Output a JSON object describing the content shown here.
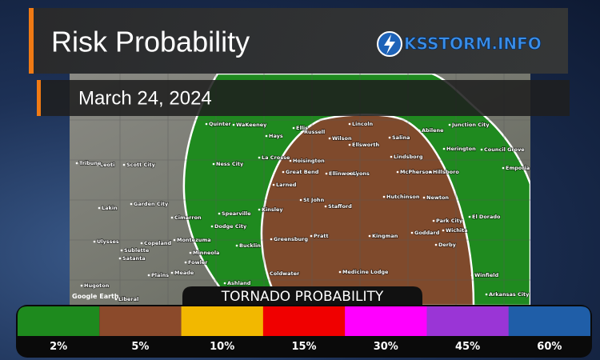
{
  "header": {
    "title": "Risk Probability",
    "logo": "KSSTORM.INFO"
  },
  "date": "March 24, 2024",
  "legend": {
    "title": "TORNADO PROBABILITY",
    "items": [
      {
        "label": "2%",
        "color": "#1e8a1e"
      },
      {
        "label": "5%",
        "color": "#8b4a2b"
      },
      {
        "label": "10%",
        "color": "#f2b800"
      },
      {
        "label": "15%",
        "color": "#f00000"
      },
      {
        "label": "30%",
        "color": "#ff00ff"
      },
      {
        "label": "45%",
        "color": "#9a35d6"
      },
      {
        "label": "60%",
        "color": "#1f5ea8"
      }
    ]
  },
  "map": {
    "attribution": "Google Earth",
    "cities": [
      "Quinter",
      "WaKeeney",
      "Hays",
      "Russell",
      "Ellis",
      "Lincoln",
      "Wilson",
      "Ellsworth",
      "Salina",
      "Abilene",
      "Junction City",
      "Herington",
      "Council Grove",
      "Emporia",
      "Lindsborg",
      "McPherson",
      "Hillsboro",
      "La Crosse",
      "Ness City",
      "Hoisington",
      "Great Bend",
      "Ellinwood",
      "Lyons",
      "Larned",
      "Hutchinson",
      "Newton",
      "St John",
      "Stafford",
      "Kinsley",
      "Spearville",
      "Dodge City",
      "Garden City",
      "Scott City",
      "Leoti",
      "Tribune",
      "Lakin",
      "Cimarron",
      "Montezuma",
      "Copeland",
      "Ulysses",
      "Sublette",
      "Satanta",
      "Fowler",
      "Minneola",
      "Bucklin",
      "Greensburg",
      "Pratt",
      "Kingman",
      "Wichita",
      "Park City",
      "El Dorado",
      "Goddard",
      "Derby",
      "Medicine Lodge",
      "Coldwater",
      "Ashland",
      "Meade",
      "Plains",
      "Hugoton",
      "Liberal",
      "Winfield",
      "Arkansas City"
    ]
  }
}
